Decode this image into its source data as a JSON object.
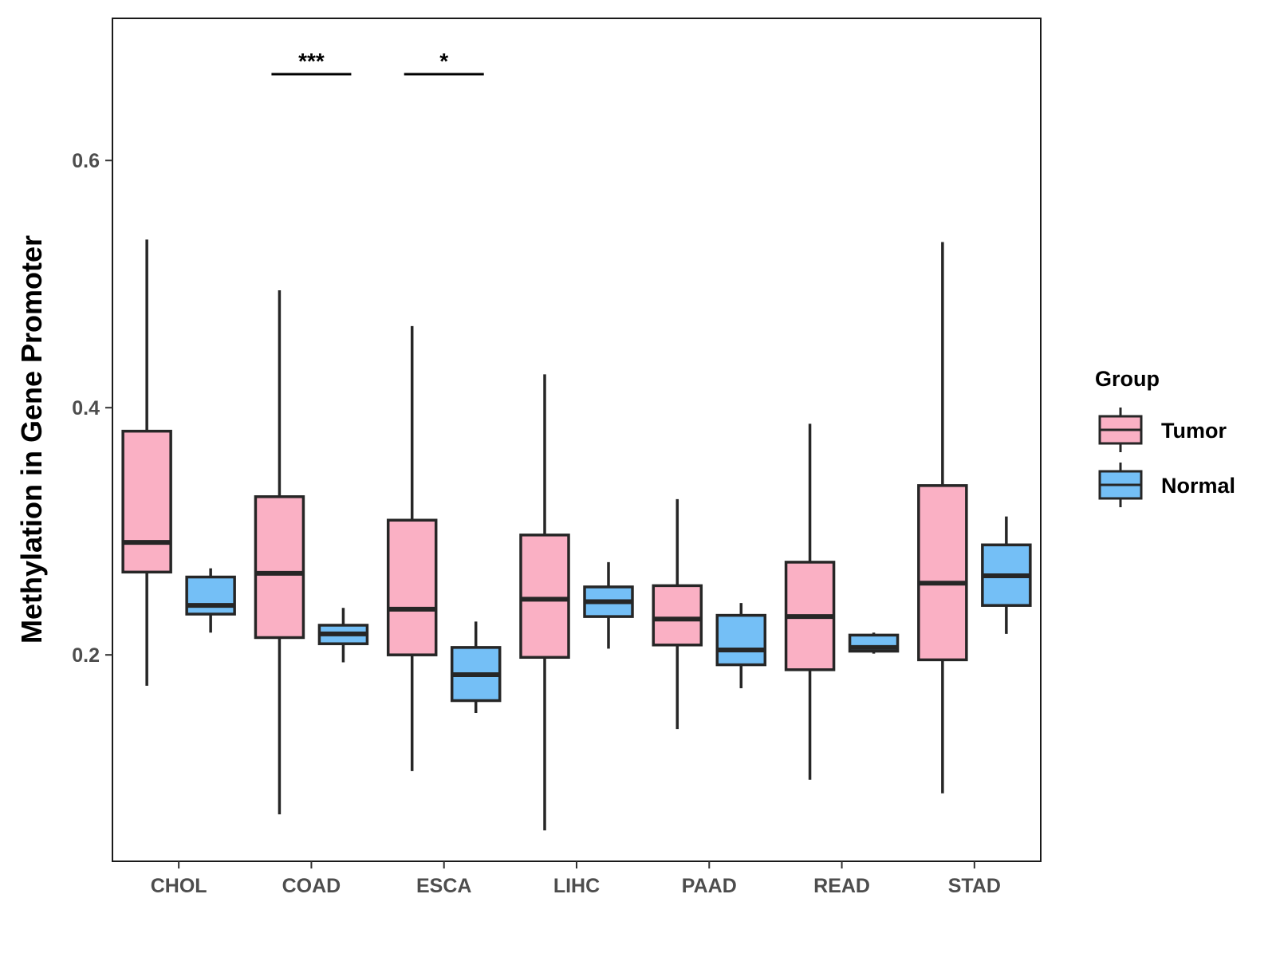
{
  "chart_data": {
    "type": "boxplot",
    "title": "",
    "xlabel": "",
    "ylabel": "Methylation in Gene Promoter",
    "ylim": [
      0.033,
      0.715
    ],
    "yticks": [
      0.2,
      0.4,
      0.6
    ],
    "ytick_labels": [
      "0.2",
      "0.4",
      "0.6"
    ],
    "categories": [
      "CHOL",
      "COAD",
      "ESCA",
      "LIHC",
      "PAAD",
      "READ",
      "STAD"
    ],
    "legend": {
      "title": "Group",
      "position": "right",
      "entries": [
        "Tumor",
        "Normal"
      ]
    },
    "colors": {
      "Tumor": "#FAB0C4",
      "Normal": "#74BFF6",
      "stroke": "#262626"
    },
    "series": [
      {
        "name": "Tumor",
        "boxes": [
          {
            "category": "CHOL",
            "min": 0.175,
            "q1": 0.267,
            "median": 0.291,
            "q3": 0.381,
            "max": 0.536
          },
          {
            "category": "COAD",
            "min": 0.071,
            "q1": 0.214,
            "median": 0.266,
            "q3": 0.328,
            "max": 0.495
          },
          {
            "category": "ESCA",
            "min": 0.106,
            "q1": 0.2,
            "median": 0.237,
            "q3": 0.309,
            "max": 0.466
          },
          {
            "category": "LIHC",
            "min": 0.058,
            "q1": 0.198,
            "median": 0.245,
            "q3": 0.297,
            "max": 0.427
          },
          {
            "category": "PAAD",
            "min": 0.14,
            "q1": 0.208,
            "median": 0.229,
            "q3": 0.256,
            "max": 0.326
          },
          {
            "category": "READ",
            "min": 0.099,
            "q1": 0.188,
            "median": 0.231,
            "q3": 0.275,
            "max": 0.387
          },
          {
            "category": "STAD",
            "min": 0.088,
            "q1": 0.196,
            "median": 0.258,
            "q3": 0.337,
            "max": 0.534
          }
        ]
      },
      {
        "name": "Normal",
        "boxes": [
          {
            "category": "CHOL",
            "min": 0.218,
            "q1": 0.233,
            "median": 0.24,
            "q3": 0.263,
            "max": 0.27
          },
          {
            "category": "COAD",
            "min": 0.194,
            "q1": 0.209,
            "median": 0.217,
            "q3": 0.224,
            "max": 0.238
          },
          {
            "category": "ESCA",
            "min": 0.153,
            "q1": 0.163,
            "median": 0.184,
            "q3": 0.206,
            "max": 0.227
          },
          {
            "category": "LIHC",
            "min": 0.205,
            "q1": 0.231,
            "median": 0.243,
            "q3": 0.255,
            "max": 0.275
          },
          {
            "category": "PAAD",
            "min": 0.173,
            "q1": 0.192,
            "median": 0.204,
            "q3": 0.232,
            "max": 0.242
          },
          {
            "category": "READ",
            "min": 0.201,
            "q1": 0.203,
            "median": 0.206,
            "q3": 0.216,
            "max": 0.218
          },
          {
            "category": "STAD",
            "min": 0.217,
            "q1": 0.24,
            "median": 0.264,
            "q3": 0.289,
            "max": 0.312
          }
        ]
      }
    ],
    "annotations": [
      {
        "category": "COAD",
        "label": "***"
      },
      {
        "category": "ESCA",
        "label": "*"
      }
    ]
  }
}
